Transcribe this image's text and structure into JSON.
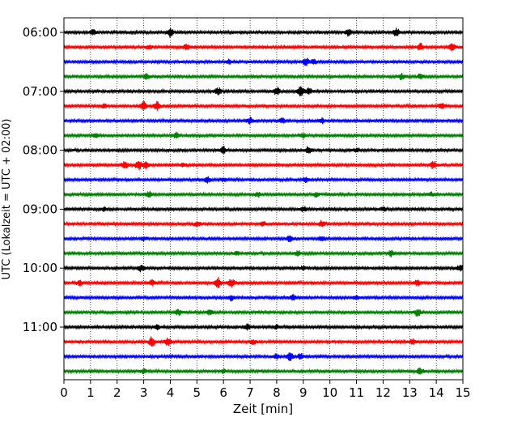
{
  "chart_data": {
    "type": "line",
    "title": "",
    "xlabel": "Zeit  [min]",
    "ylabel": "UTC (Lokalzeit = UTC + 02:00)",
    "xlim": [
      0,
      15
    ],
    "x_ticks": [
      0,
      1,
      2,
      3,
      4,
      5,
      6,
      7,
      8,
      9,
      10,
      11,
      12,
      13,
      14,
      15
    ],
    "x_tick_labels": [
      "0",
      "1",
      "2",
      "3",
      "4",
      "5",
      "6",
      "7",
      "8",
      "9",
      "10",
      "11",
      "12",
      "13",
      "14",
      "15"
    ],
    "y_tick_labels": [
      "06:00",
      "07:00",
      "08:00",
      "09:00",
      "10:00",
      "11:00"
    ],
    "grid": "vertical-dotted",
    "trace_interval_minutes": 15,
    "trace_colors": [
      "#000000",
      "#ff0000",
      "#0000ff",
      "#008000"
    ],
    "traces": [
      {
        "time": "06:00",
        "color": "#000000",
        "events": [
          [
            4.0,
            1.0
          ],
          [
            10.7,
            0.7
          ],
          [
            12.5,
            0.9
          ],
          [
            1.1,
            0.5
          ]
        ]
      },
      {
        "time": "06:15",
        "color": "#ff0000",
        "events": [
          [
            4.6,
            0.6
          ],
          [
            13.4,
            0.8
          ],
          [
            14.6,
            0.7
          ],
          [
            3.2,
            0.4
          ]
        ]
      },
      {
        "time": "06:30",
        "color": "#0000ff",
        "events": [
          [
            9.1,
            0.7
          ],
          [
            9.4,
            0.5
          ],
          [
            6.2,
            0.4
          ]
        ]
      },
      {
        "time": "06:45",
        "color": "#008000",
        "events": [
          [
            3.1,
            0.5
          ],
          [
            12.7,
            0.6
          ],
          [
            13.4,
            0.5
          ]
        ]
      },
      {
        "time": "07:00",
        "color": "#000000",
        "events": [
          [
            5.8,
            0.7
          ],
          [
            8.0,
            0.9
          ],
          [
            8.9,
            1.0
          ],
          [
            9.2,
            0.7
          ]
        ]
      },
      {
        "time": "07:15",
        "color": "#ff0000",
        "events": [
          [
            3.0,
            1.0
          ],
          [
            3.5,
            0.9
          ],
          [
            14.2,
            0.6
          ],
          [
            1.5,
            0.5
          ]
        ]
      },
      {
        "time": "07:30",
        "color": "#0000ff",
        "events": [
          [
            7.0,
            0.7
          ],
          [
            8.2,
            0.6
          ],
          [
            9.7,
            0.5
          ]
        ]
      },
      {
        "time": "07:45",
        "color": "#008000",
        "events": [
          [
            4.2,
            0.6
          ],
          [
            9.0,
            0.5
          ],
          [
            1.2,
            0.4
          ]
        ]
      },
      {
        "time": "08:00",
        "color": "#000000",
        "events": [
          [
            6.0,
            0.7
          ],
          [
            9.2,
            0.8
          ],
          [
            11.0,
            0.4
          ]
        ]
      },
      {
        "time": "08:15",
        "color": "#ff0000",
        "events": [
          [
            2.3,
            0.8
          ],
          [
            2.8,
            1.0
          ],
          [
            3.1,
            0.7
          ],
          [
            13.9,
            0.8
          ],
          [
            4.5,
            0.5
          ]
        ]
      },
      {
        "time": "08:30",
        "color": "#0000ff",
        "events": [
          [
            5.4,
            0.7
          ],
          [
            9.1,
            0.6
          ],
          [
            6.0,
            0.4
          ]
        ]
      },
      {
        "time": "08:45",
        "color": "#008000",
        "events": [
          [
            3.2,
            0.6
          ],
          [
            7.3,
            0.5
          ],
          [
            9.5,
            0.5
          ],
          [
            13.8,
            0.4
          ]
        ]
      },
      {
        "time": "09:00",
        "color": "#000000",
        "events": [
          [
            9.0,
            0.6
          ],
          [
            12.0,
            0.4
          ],
          [
            1.5,
            0.4
          ]
        ]
      },
      {
        "time": "09:15",
        "color": "#ff0000",
        "events": [
          [
            9.7,
            0.6
          ],
          [
            5.0,
            0.4
          ],
          [
            7.5,
            0.4
          ]
        ]
      },
      {
        "time": "09:30",
        "color": "#0000ff",
        "events": [
          [
            8.5,
            0.7
          ],
          [
            9.7,
            0.6
          ],
          [
            3.0,
            0.4
          ]
        ]
      },
      {
        "time": "09:45",
        "color": "#008000",
        "events": [
          [
            8.8,
            0.5
          ],
          [
            12.3,
            0.6
          ],
          [
            6.5,
            0.4
          ]
        ]
      },
      {
        "time": "10:00",
        "color": "#000000",
        "events": [
          [
            2.9,
            0.7
          ],
          [
            14.9,
            0.7
          ],
          [
            9.0,
            0.4
          ]
        ]
      },
      {
        "time": "10:15",
        "color": "#ff0000",
        "events": [
          [
            0.6,
            0.5
          ],
          [
            3.3,
            0.6
          ],
          [
            5.8,
            1.0
          ],
          [
            6.3,
            0.8
          ],
          [
            13.3,
            0.6
          ]
        ]
      },
      {
        "time": "10:30",
        "color": "#0000ff",
        "events": [
          [
            6.3,
            0.6
          ],
          [
            8.6,
            0.6
          ],
          [
            11.0,
            0.4
          ]
        ]
      },
      {
        "time": "10:45",
        "color": "#008000",
        "events": [
          [
            4.3,
            0.6
          ],
          [
            5.5,
            0.5
          ],
          [
            13.3,
            0.8
          ]
        ]
      },
      {
        "time": "11:00",
        "color": "#000000",
        "events": [
          [
            6.9,
            0.6
          ],
          [
            8.0,
            0.4
          ],
          [
            3.5,
            0.4
          ]
        ]
      },
      {
        "time": "11:15",
        "color": "#ff0000",
        "events": [
          [
            3.3,
            1.0
          ],
          [
            3.9,
            0.9
          ],
          [
            7.1,
            0.6
          ],
          [
            13.1,
            0.6
          ]
        ]
      },
      {
        "time": "11:30",
        "color": "#0000ff",
        "events": [
          [
            8.0,
            0.6
          ],
          [
            8.5,
            0.8
          ],
          [
            8.9,
            0.6
          ]
        ]
      },
      {
        "time": "11:45",
        "color": "#008000",
        "events": [
          [
            13.4,
            0.7
          ],
          [
            6.0,
            0.4
          ],
          [
            3.0,
            0.4
          ]
        ]
      }
    ]
  }
}
